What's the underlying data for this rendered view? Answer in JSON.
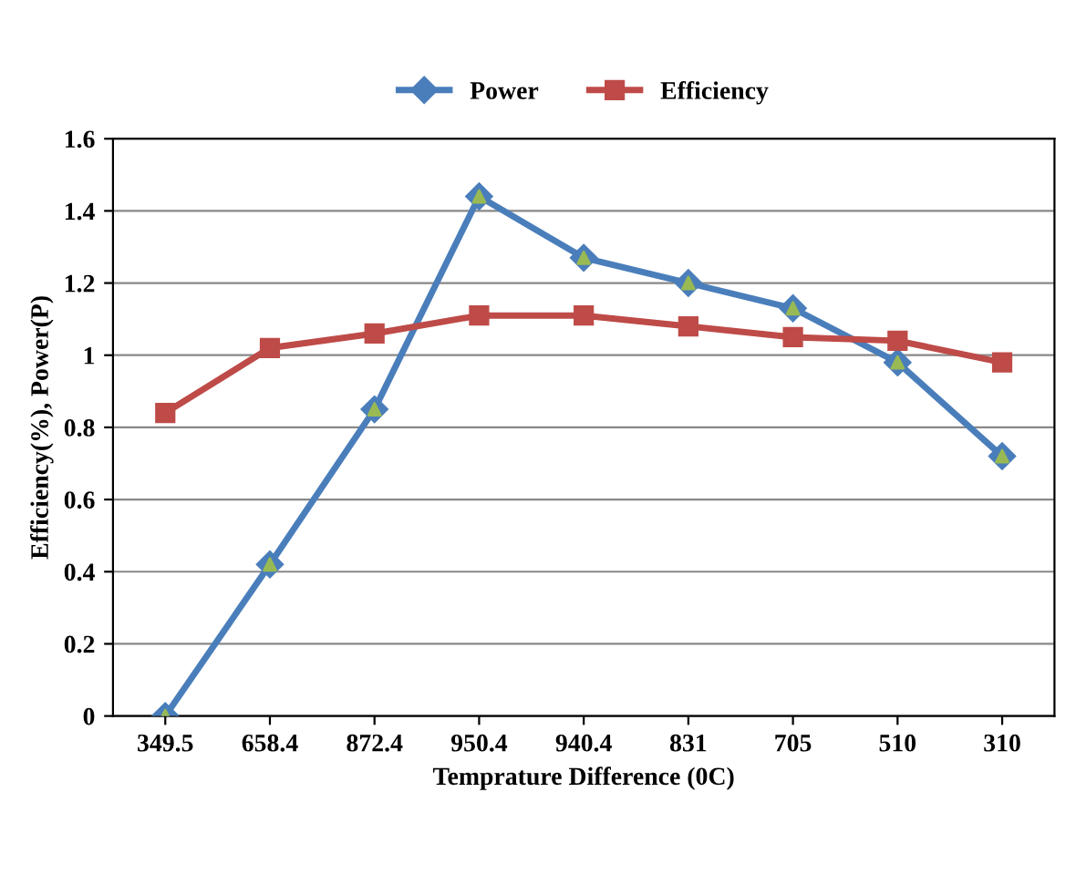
{
  "chart_data": {
    "type": "line",
    "categories": [
      "349.5",
      "658.4",
      "872.4",
      "950.4",
      "940.4",
      "831",
      "705",
      "510",
      "310"
    ],
    "series": [
      {
        "name": "Power",
        "color": "#4a7ebb",
        "marker": "diamond",
        "values": [
          0,
          0.42,
          0.85,
          1.44,
          1.27,
          1.2,
          1.13,
          0.98,
          0.72
        ]
      },
      {
        "name": "Efficiency",
        "color": "#be4b48",
        "marker": "square",
        "values": [
          0.84,
          1.02,
          1.06,
          1.11,
          1.11,
          1.08,
          1.05,
          1.04,
          0.98
        ]
      },
      {
        "type": "scatter",
        "color": "#98b954",
        "marker": "triangle",
        "values": [
          0,
          0.42,
          0.85,
          1.44,
          1.27,
          1.2,
          1.13,
          0.98,
          0.72
        ]
      }
    ],
    "xlabel": "Temprature Difference (0C)",
    "ylabel": "Efficiency(%), Power(P)",
    "ylim": [
      0,
      1.6
    ],
    "yticks": [
      0,
      0.2,
      0.4,
      0.6,
      0.8,
      1,
      1.2,
      1.4,
      1.6
    ],
    "grid": "y",
    "legend": "top"
  }
}
